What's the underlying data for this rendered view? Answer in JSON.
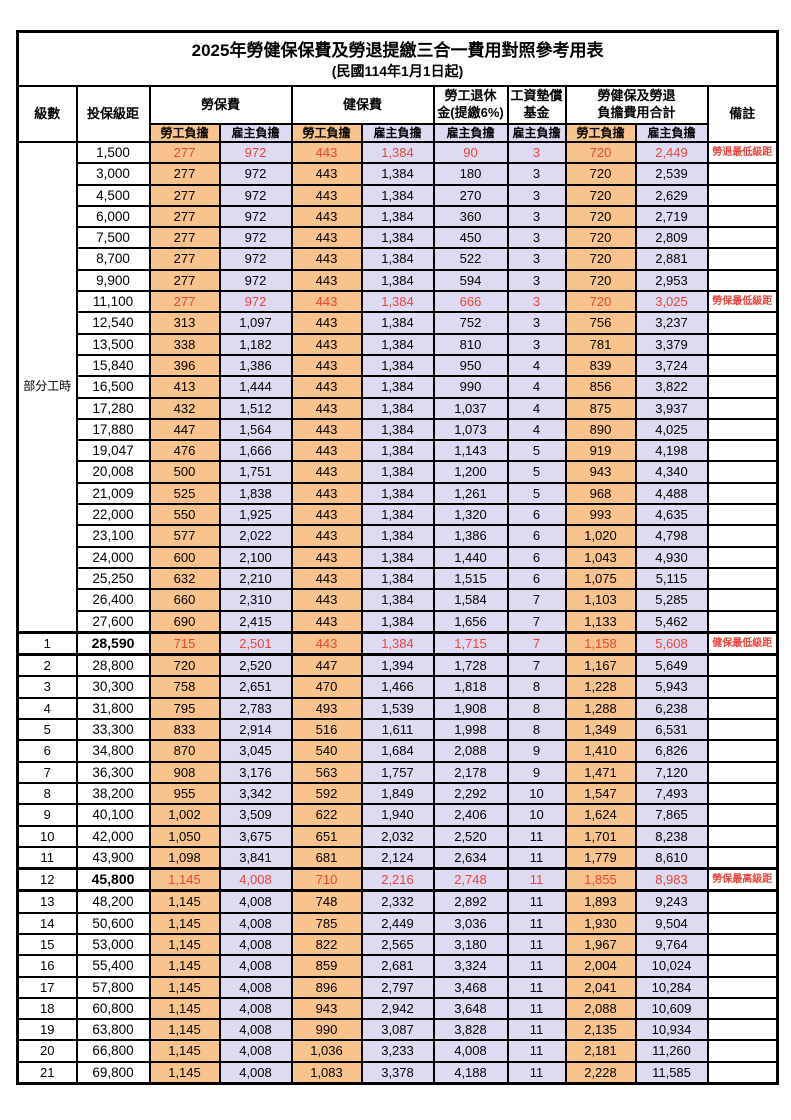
{
  "title": "2025年勞健保保費及勞退提繳三合一費用對照參考用表",
  "subtitle": "(民國114年1月1日起)",
  "colors": {
    "employee_share_bg": "#f9c38e",
    "employer_share_bg": "#dedaf2",
    "highlight_text": "#e8453c",
    "border": "#000000"
  },
  "header": {
    "level": "級數",
    "bracket": "投保級距",
    "labor_insurance": "勞保費",
    "health_insurance": "健保費",
    "pension_line1": "勞工退休",
    "pension_line2": "金(提繳6%)",
    "wage_fund_line1": "工資墊償",
    "wage_fund_line2": "基金",
    "total_line1": "勞健保及勞退",
    "total_line2": "負擔費用合計",
    "remark": "備註",
    "employee_share": "勞工負擔",
    "employer_share": "雇主負擔"
  },
  "part_time_label": "部分工時",
  "part_time_rowspan": 23,
  "rows": [
    {
      "level": "",
      "bracket": "1,500",
      "values": [
        "277",
        "972",
        "443",
        "1,384",
        "90",
        "3",
        "720",
        "2,449"
      ],
      "remark": "勞退最低級距",
      "red": true,
      "thick": false,
      "bold": false
    },
    {
      "level": "",
      "bracket": "3,000",
      "values": [
        "277",
        "972",
        "443",
        "1,384",
        "180",
        "3",
        "720",
        "2,539"
      ],
      "remark": "",
      "red": false,
      "thick": false,
      "bold": false
    },
    {
      "level": "",
      "bracket": "4,500",
      "values": [
        "277",
        "972",
        "443",
        "1,384",
        "270",
        "3",
        "720",
        "2,629"
      ],
      "remark": "",
      "red": false,
      "thick": false,
      "bold": false
    },
    {
      "level": "",
      "bracket": "6,000",
      "values": [
        "277",
        "972",
        "443",
        "1,384",
        "360",
        "3",
        "720",
        "2,719"
      ],
      "remark": "",
      "red": false,
      "thick": false,
      "bold": false
    },
    {
      "level": "",
      "bracket": "7,500",
      "values": [
        "277",
        "972",
        "443",
        "1,384",
        "450",
        "3",
        "720",
        "2,809"
      ],
      "remark": "",
      "red": false,
      "thick": false,
      "bold": false
    },
    {
      "level": "",
      "bracket": "8,700",
      "values": [
        "277",
        "972",
        "443",
        "1,384",
        "522",
        "3",
        "720",
        "2,881"
      ],
      "remark": "",
      "red": false,
      "thick": false,
      "bold": false
    },
    {
      "level": "",
      "bracket": "9,900",
      "values": [
        "277",
        "972",
        "443",
        "1,384",
        "594",
        "3",
        "720",
        "2,953"
      ],
      "remark": "",
      "red": false,
      "thick": false,
      "bold": false
    },
    {
      "level": "",
      "bracket": "11,100",
      "values": [
        "277",
        "972",
        "443",
        "1,384",
        "666",
        "3",
        "720",
        "3,025"
      ],
      "remark": "勞保最低級距",
      "red": true,
      "thick": false,
      "bold": false
    },
    {
      "level": "",
      "bracket": "12,540",
      "values": [
        "313",
        "1,097",
        "443",
        "1,384",
        "752",
        "3",
        "756",
        "3,237"
      ],
      "remark": "",
      "red": false,
      "thick": false,
      "bold": false
    },
    {
      "level": "",
      "bracket": "13,500",
      "values": [
        "338",
        "1,182",
        "443",
        "1,384",
        "810",
        "3",
        "781",
        "3,379"
      ],
      "remark": "",
      "red": false,
      "thick": false,
      "bold": false
    },
    {
      "level": "",
      "bracket": "15,840",
      "values": [
        "396",
        "1,386",
        "443",
        "1,384",
        "950",
        "4",
        "839",
        "3,724"
      ],
      "remark": "",
      "red": false,
      "thick": false,
      "bold": false
    },
    {
      "level": "",
      "bracket": "16,500",
      "values": [
        "413",
        "1,444",
        "443",
        "1,384",
        "990",
        "4",
        "856",
        "3,822"
      ],
      "remark": "",
      "red": false,
      "thick": false,
      "bold": false
    },
    {
      "level": "",
      "bracket": "17,280",
      "values": [
        "432",
        "1,512",
        "443",
        "1,384",
        "1,037",
        "4",
        "875",
        "3,937"
      ],
      "remark": "",
      "red": false,
      "thick": false,
      "bold": false
    },
    {
      "level": "",
      "bracket": "17,880",
      "values": [
        "447",
        "1,564",
        "443",
        "1,384",
        "1,073",
        "4",
        "890",
        "4,025"
      ],
      "remark": "",
      "red": false,
      "thick": false,
      "bold": false
    },
    {
      "level": "",
      "bracket": "19,047",
      "values": [
        "476",
        "1,666",
        "443",
        "1,384",
        "1,143",
        "5",
        "919",
        "4,198"
      ],
      "remark": "",
      "red": false,
      "thick": false,
      "bold": false
    },
    {
      "level": "",
      "bracket": "20,008",
      "values": [
        "500",
        "1,751",
        "443",
        "1,384",
        "1,200",
        "5",
        "943",
        "4,340"
      ],
      "remark": "",
      "red": false,
      "thick": false,
      "bold": false
    },
    {
      "level": "",
      "bracket": "21,009",
      "values": [
        "525",
        "1,838",
        "443",
        "1,384",
        "1,261",
        "5",
        "968",
        "4,488"
      ],
      "remark": "",
      "red": false,
      "thick": false,
      "bold": false
    },
    {
      "level": "",
      "bracket": "22,000",
      "values": [
        "550",
        "1,925",
        "443",
        "1,384",
        "1,320",
        "6",
        "993",
        "4,635"
      ],
      "remark": "",
      "red": false,
      "thick": false,
      "bold": false
    },
    {
      "level": "",
      "bracket": "23,100",
      "values": [
        "577",
        "2,022",
        "443",
        "1,384",
        "1,386",
        "6",
        "1,020",
        "4,798"
      ],
      "remark": "",
      "red": false,
      "thick": false,
      "bold": false
    },
    {
      "level": "",
      "bracket": "24,000",
      "values": [
        "600",
        "2,100",
        "443",
        "1,384",
        "1,440",
        "6",
        "1,043",
        "4,930"
      ],
      "remark": "",
      "red": false,
      "thick": false,
      "bold": false
    },
    {
      "level": "",
      "bracket": "25,250",
      "values": [
        "632",
        "2,210",
        "443",
        "1,384",
        "1,515",
        "6",
        "1,075",
        "5,115"
      ],
      "remark": "",
      "red": false,
      "thick": false,
      "bold": false
    },
    {
      "level": "",
      "bracket": "26,400",
      "values": [
        "660",
        "2,310",
        "443",
        "1,384",
        "1,584",
        "7",
        "1,103",
        "5,285"
      ],
      "remark": "",
      "red": false,
      "thick": false,
      "bold": false
    },
    {
      "level": "",
      "bracket": "27,600",
      "values": [
        "690",
        "2,415",
        "443",
        "1,384",
        "1,656",
        "7",
        "1,133",
        "5,462"
      ],
      "remark": "",
      "red": false,
      "thick": false,
      "bold": false
    },
    {
      "level": "1",
      "bracket": "28,590",
      "values": [
        "715",
        "2,501",
        "443",
        "1,384",
        "1,715",
        "7",
        "1,158",
        "5,608"
      ],
      "remark": "健保最低級距",
      "red": true,
      "thick": true,
      "bold": true
    },
    {
      "level": "2",
      "bracket": "28,800",
      "values": [
        "720",
        "2,520",
        "447",
        "1,394",
        "1,728",
        "7",
        "1,167",
        "5,649"
      ],
      "remark": "",
      "red": false,
      "thick": false,
      "bold": false
    },
    {
      "level": "3",
      "bracket": "30,300",
      "values": [
        "758",
        "2,651",
        "470",
        "1,466",
        "1,818",
        "8",
        "1,228",
        "5,943"
      ],
      "remark": "",
      "red": false,
      "thick": false,
      "bold": false
    },
    {
      "level": "4",
      "bracket": "31,800",
      "values": [
        "795",
        "2,783",
        "493",
        "1,539",
        "1,908",
        "8",
        "1,288",
        "6,238"
      ],
      "remark": "",
      "red": false,
      "thick": false,
      "bold": false
    },
    {
      "level": "5",
      "bracket": "33,300",
      "values": [
        "833",
        "2,914",
        "516",
        "1,611",
        "1,998",
        "8",
        "1,349",
        "6,531"
      ],
      "remark": "",
      "red": false,
      "thick": false,
      "bold": false
    },
    {
      "level": "6",
      "bracket": "34,800",
      "values": [
        "870",
        "3,045",
        "540",
        "1,684",
        "2,088",
        "9",
        "1,410",
        "6,826"
      ],
      "remark": "",
      "red": false,
      "thick": false,
      "bold": false
    },
    {
      "level": "7",
      "bracket": "36,300",
      "values": [
        "908",
        "3,176",
        "563",
        "1,757",
        "2,178",
        "9",
        "1,471",
        "7,120"
      ],
      "remark": "",
      "red": false,
      "thick": false,
      "bold": false
    },
    {
      "level": "8",
      "bracket": "38,200",
      "values": [
        "955",
        "3,342",
        "592",
        "1,849",
        "2,292",
        "10",
        "1,547",
        "7,493"
      ],
      "remark": "",
      "red": false,
      "thick": false,
      "bold": false
    },
    {
      "level": "9",
      "bracket": "40,100",
      "values": [
        "1,002",
        "3,509",
        "622",
        "1,940",
        "2,406",
        "10",
        "1,624",
        "7,865"
      ],
      "remark": "",
      "red": false,
      "thick": false,
      "bold": false
    },
    {
      "level": "10",
      "bracket": "42,000",
      "values": [
        "1,050",
        "3,675",
        "651",
        "2,032",
        "2,520",
        "11",
        "1,701",
        "8,238"
      ],
      "remark": "",
      "red": false,
      "thick": false,
      "bold": false
    },
    {
      "level": "11",
      "bracket": "43,900",
      "values": [
        "1,098",
        "3,841",
        "681",
        "2,124",
        "2,634",
        "11",
        "1,779",
        "8,610"
      ],
      "remark": "",
      "red": false,
      "thick": false,
      "bold": false
    },
    {
      "level": "12",
      "bracket": "45,800",
      "values": [
        "1,145",
        "4,008",
        "710",
        "2,216",
        "2,748",
        "11",
        "1,855",
        "8,983"
      ],
      "remark": "勞保最高級距",
      "red": true,
      "thick": true,
      "bold": true
    },
    {
      "level": "13",
      "bracket": "48,200",
      "values": [
        "1,145",
        "4,008",
        "748",
        "2,332",
        "2,892",
        "11",
        "1,893",
        "9,243"
      ],
      "remark": "",
      "red": false,
      "thick": false,
      "bold": false
    },
    {
      "level": "14",
      "bracket": "50,600",
      "values": [
        "1,145",
        "4,008",
        "785",
        "2,449",
        "3,036",
        "11",
        "1,930",
        "9,504"
      ],
      "remark": "",
      "red": false,
      "thick": false,
      "bold": false
    },
    {
      "level": "15",
      "bracket": "53,000",
      "values": [
        "1,145",
        "4,008",
        "822",
        "2,565",
        "3,180",
        "11",
        "1,967",
        "9,764"
      ],
      "remark": "",
      "red": false,
      "thick": false,
      "bold": false
    },
    {
      "level": "16",
      "bracket": "55,400",
      "values": [
        "1,145",
        "4,008",
        "859",
        "2,681",
        "3,324",
        "11",
        "2,004",
        "10,024"
      ],
      "remark": "",
      "red": false,
      "thick": false,
      "bold": false
    },
    {
      "level": "17",
      "bracket": "57,800",
      "values": [
        "1,145",
        "4,008",
        "896",
        "2,797",
        "3,468",
        "11",
        "2,041",
        "10,284"
      ],
      "remark": "",
      "red": false,
      "thick": false,
      "bold": false
    },
    {
      "level": "18",
      "bracket": "60,800",
      "values": [
        "1,145",
        "4,008",
        "943",
        "2,942",
        "3,648",
        "11",
        "2,088",
        "10,609"
      ],
      "remark": "",
      "red": false,
      "thick": false,
      "bold": false
    },
    {
      "level": "19",
      "bracket": "63,800",
      "values": [
        "1,145",
        "4,008",
        "990",
        "3,087",
        "3,828",
        "11",
        "2,135",
        "10,934"
      ],
      "remark": "",
      "red": false,
      "thick": false,
      "bold": false
    },
    {
      "level": "20",
      "bracket": "66,800",
      "values": [
        "1,145",
        "4,008",
        "1,036",
        "3,233",
        "4,008",
        "11",
        "2,181",
        "11,260"
      ],
      "remark": "",
      "red": false,
      "thick": false,
      "bold": false
    },
    {
      "level": "21",
      "bracket": "69,800",
      "values": [
        "1,145",
        "4,008",
        "1,083",
        "3,378",
        "4,188",
        "11",
        "2,228",
        "11,585"
      ],
      "remark": "",
      "red": false,
      "thick": false,
      "bold": false
    }
  ]
}
